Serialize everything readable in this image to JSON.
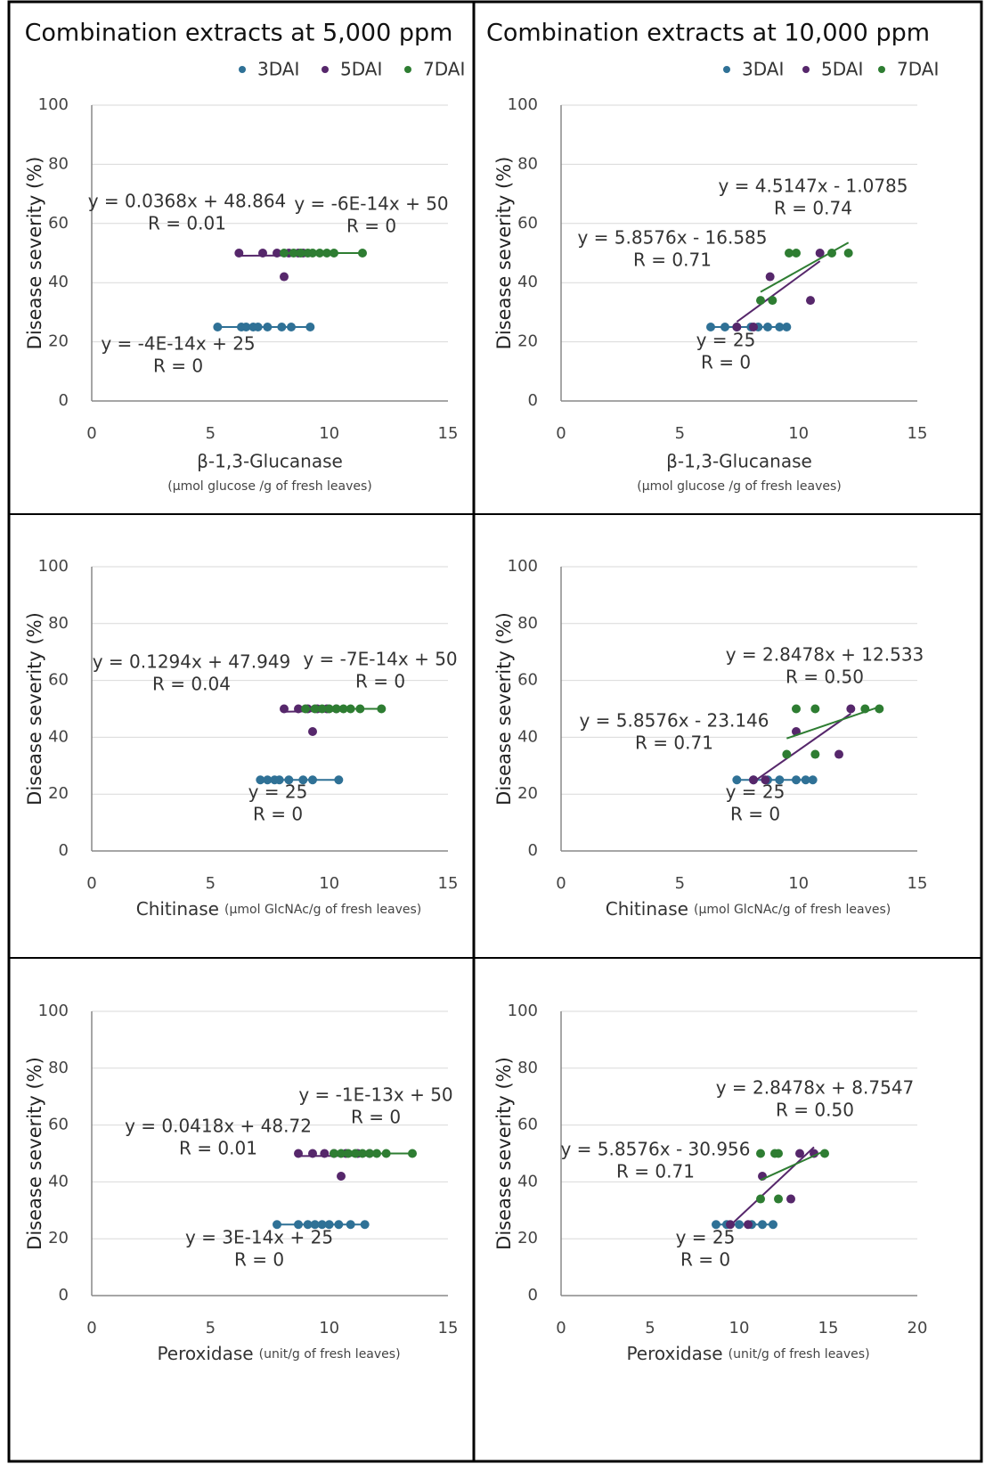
{
  "chart_data": [
    {
      "type": "scatter",
      "title": "Combination extracts at 5,000 ppm",
      "legend": true,
      "grid": true,
      "xlabel": "β-1,3-Glucanase",
      "xlabel_unit": "(µmol glucose /g of fresh leaves)",
      "ylabel": "Disease severity (%)",
      "xlim": [
        0,
        15
      ],
      "xticks": [
        0,
        5,
        10,
        15
      ],
      "ylim": [
        0,
        100
      ],
      "yticks": [
        0,
        20,
        40,
        60,
        80,
        100
      ],
      "series": [
        {
          "name": "3DAI",
          "color": "#2f7196",
          "x": [
            5.3,
            6.3,
            6.5,
            6.8,
            7.0,
            7.4,
            8.0,
            8.4,
            9.2
          ],
          "values": [
            25,
            25,
            25,
            25,
            25,
            25,
            25,
            25,
            25
          ],
          "slope": -4e-14,
          "intercept": 25,
          "equation": "y = -4E-14x + 25",
          "r_text": "R = 0"
        },
        {
          "name": "5DAI",
          "color": "#56276b",
          "x": [
            6.2,
            7.2,
            7.8,
            8.1,
            8.3,
            8.7,
            8.9
          ],
          "values": [
            50,
            50,
            50,
            42,
            50,
            50,
            50
          ],
          "slope": 0.0368,
          "intercept": 48.864,
          "equation": "y = 0.0368x + 48.864",
          "r_text": "R = 0.01"
        },
        {
          "name": "7DAI",
          "color": "#2e7d32",
          "x": [
            8.1,
            8.5,
            8.8,
            9.1,
            9.3,
            9.6,
            9.9,
            10.2,
            11.4
          ],
          "values": [
            50,
            50,
            50,
            50,
            50,
            50,
            50,
            50,
            50
          ],
          "slope": -6e-14,
          "intercept": 50,
          "equation": "y = -6E-14x + 50",
          "r_text": "R = 0"
        }
      ]
    },
    {
      "type": "scatter",
      "title": "Combination extracts at 10,000 ppm",
      "legend": true,
      "grid": true,
      "xlabel": "β-1,3-Glucanase",
      "xlabel_unit": "(µmol glucose /g of fresh leaves)",
      "ylabel": "Disease severity (%)",
      "xlim": [
        0,
        15
      ],
      "xticks": [
        0,
        5,
        10,
        15
      ],
      "ylim": [
        0,
        100
      ],
      "yticks": [
        0,
        20,
        40,
        60,
        80,
        100
      ],
      "series": [
        {
          "name": "3DAI",
          "color": "#2f7196",
          "x": [
            6.3,
            6.9,
            7.4,
            8.0,
            8.3,
            8.7,
            9.2,
            9.5
          ],
          "values": [
            25,
            25,
            25,
            25,
            25,
            25,
            25,
            25
          ],
          "slope": 0,
          "intercept": 25,
          "equation": "y = 25",
          "r_text": "R = 0"
        },
        {
          "name": "5DAI",
          "color": "#56276b",
          "x": [
            7.4,
            8.1,
            8.8,
            10.5,
            10.9
          ],
          "values": [
            25,
            25,
            42,
            34,
            50
          ],
          "slope": 5.8576,
          "intercept": -16.585,
          "equation": "y = 5.8576x - 16.585",
          "r_text": "R = 0.71"
        },
        {
          "name": "7DAI",
          "color": "#2e7d32",
          "x": [
            8.4,
            8.9,
            9.6,
            9.9,
            11.4,
            12.1
          ],
          "values": [
            34,
            34,
            50,
            50,
            50,
            50
          ],
          "slope": 4.5147,
          "intercept": -1.0785,
          "equation": "y = 4.5147x - 1.0785",
          "r_text": "R = 0.74"
        }
      ]
    },
    {
      "type": "scatter",
      "legend": false,
      "grid": true,
      "xlabel": "Chitinase",
      "xlabel_unit": "(µmol GlcNAc/g of fresh leaves)",
      "ylabel": "Disease severity (%)",
      "xlim": [
        0,
        15
      ],
      "xticks": [
        0,
        5,
        10,
        15
      ],
      "ylim": [
        0,
        100
      ],
      "yticks": [
        0,
        20,
        40,
        60,
        80,
        100
      ],
      "series": [
        {
          "color": "#2f7196",
          "x": [
            7.1,
            7.4,
            7.7,
            7.9,
            8.3,
            8.9,
            9.3,
            10.4
          ],
          "values": [
            25,
            25,
            25,
            25,
            25,
            25,
            25,
            25
          ],
          "slope": 0,
          "intercept": 25,
          "equation": "y = 25",
          "r_text": "R = 0"
        },
        {
          "color": "#56276b",
          "x": [
            8.1,
            8.7,
            9.1,
            9.3,
            9.5,
            9.9,
            10.3
          ],
          "values": [
            50,
            50,
            50,
            42,
            50,
            50,
            50
          ],
          "slope": 0.1294,
          "intercept": 47.949,
          "equation": "y = 0.1294x + 47.949",
          "r_text": "R = 0.04"
        },
        {
          "color": "#2e7d32",
          "x": [
            9.0,
            9.4,
            9.7,
            10.0,
            10.3,
            10.6,
            10.9,
            11.3,
            12.2
          ],
          "values": [
            50,
            50,
            50,
            50,
            50,
            50,
            50,
            50,
            50
          ],
          "slope": -7e-14,
          "intercept": 50,
          "equation": "y = -7E-14x + 50",
          "r_text": "R = 0"
        }
      ]
    },
    {
      "type": "scatter",
      "legend": false,
      "grid": true,
      "xlabel": "Chitinase",
      "xlabel_unit": "(µmol GlcNAc/g of fresh leaves)",
      "ylabel": "Disease severity (%)",
      "xlim": [
        0,
        15
      ],
      "xticks": [
        0,
        5,
        10,
        15
      ],
      "ylim": [
        0,
        100
      ],
      "yticks": [
        0,
        20,
        40,
        60,
        80,
        100
      ],
      "series": [
        {
          "color": "#2f7196",
          "x": [
            7.4,
            8.1,
            8.7,
            9.2,
            9.9,
            10.3,
            10.6
          ],
          "values": [
            25,
            25,
            25,
            25,
            25,
            25,
            25
          ],
          "slope": 0,
          "intercept": 25,
          "equation": "y = 25",
          "r_text": "R = 0"
        },
        {
          "color": "#56276b",
          "x": [
            8.1,
            8.6,
            9.9,
            11.7,
            12.2
          ],
          "values": [
            25,
            25,
            42,
            34,
            50
          ],
          "slope": 5.8576,
          "intercept": -23.146,
          "equation": "y = 5.8576x - 23.146",
          "r_text": "R = 0.71"
        },
        {
          "color": "#2e7d32",
          "x": [
            9.5,
            9.9,
            10.7,
            10.7,
            12.8,
            13.4
          ],
          "values": [
            34,
            50,
            50,
            34,
            50,
            50
          ],
          "slope": 2.8478,
          "intercept": 12.533,
          "equation": "y = 2.8478x + 12.533",
          "r_text": "R = 0.50"
        }
      ]
    },
    {
      "type": "scatter",
      "legend": false,
      "grid": true,
      "xlabel": "Peroxidase",
      "xlabel_unit": "(unit/g of fresh leaves)",
      "ylabel": "Disease severity (%)",
      "xlim": [
        0,
        15
      ],
      "xticks": [
        0,
        5,
        10,
        15
      ],
      "ylim": [
        0,
        100
      ],
      "yticks": [
        0,
        20,
        40,
        60,
        80,
        100
      ],
      "series": [
        {
          "color": "#2f7196",
          "x": [
            7.8,
            8.7,
            9.1,
            9.4,
            9.7,
            10.0,
            10.4,
            10.9,
            11.5
          ],
          "values": [
            25,
            25,
            25,
            25,
            25,
            25,
            25,
            25,
            25
          ],
          "slope": 3e-14,
          "intercept": 25,
          "equation": "y = 3E-14x + 25",
          "r_text": "R = 0"
        },
        {
          "color": "#56276b",
          "x": [
            8.7,
            9.3,
            9.8,
            10.2,
            10.5,
            10.7,
            11.2,
            11.7
          ],
          "values": [
            50,
            50,
            50,
            50,
            42,
            50,
            50,
            50
          ],
          "slope": 0.0418,
          "intercept": 48.72,
          "equation": "y = 0.0418x + 48.72",
          "r_text": "R = 0.01"
        },
        {
          "color": "#2e7d32",
          "x": [
            10.2,
            10.5,
            10.8,
            11.1,
            11.4,
            11.7,
            12.0,
            12.4,
            13.5
          ],
          "values": [
            50,
            50,
            50,
            50,
            50,
            50,
            50,
            50,
            50
          ],
          "slope": -1e-13,
          "intercept": 50,
          "equation": "y = -1E-13x + 50",
          "r_text": "R = 0"
        }
      ]
    },
    {
      "type": "scatter",
      "legend": false,
      "grid": true,
      "xlabel": "Peroxidase",
      "xlabel_unit": "(unit/g of fresh leaves)",
      "ylabel": "Disease severity (%)",
      "xlim": [
        0,
        20
      ],
      "xticks": [
        0,
        5,
        10,
        15,
        20
      ],
      "ylim": [
        0,
        100
      ],
      "yticks": [
        0,
        20,
        40,
        60,
        80,
        100
      ],
      "series": [
        {
          "color": "#2f7196",
          "x": [
            8.7,
            9.3,
            10.0,
            10.7,
            11.3,
            11.9
          ],
          "values": [
            25,
            25,
            25,
            25,
            25,
            25
          ],
          "slope": 0,
          "intercept": 25,
          "equation": "y = 25",
          "r_text": "R = 0"
        },
        {
          "color": "#56276b",
          "x": [
            9.5,
            10.5,
            11.3,
            12.9,
            13.4,
            14.2
          ],
          "values": [
            25,
            25,
            42,
            34,
            50,
            50
          ],
          "slope": 5.8576,
          "intercept": -30.956,
          "equation": "y = 5.8576x - 30.956",
          "r_text": "R = 0.71"
        },
        {
          "color": "#2e7d32",
          "x": [
            11.2,
            11.2,
            12.0,
            12.2,
            12.2,
            14.8
          ],
          "values": [
            34,
            50,
            50,
            50,
            34,
            50
          ],
          "slope": 2.8478,
          "intercept": 8.7547,
          "equation": "y = 2.8478x + 8.7547",
          "r_text": "R = 0.50"
        }
      ]
    }
  ]
}
